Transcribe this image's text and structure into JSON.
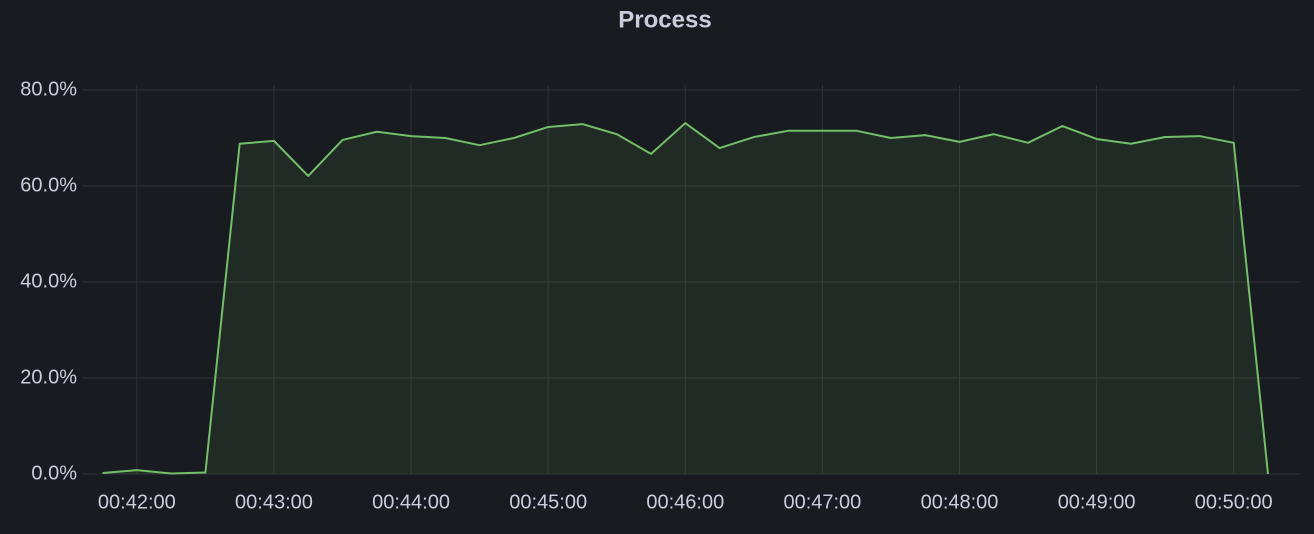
{
  "chart_data": {
    "type": "line",
    "title": "Process",
    "x": [
      "00:41:45",
      "00:42:00",
      "00:42:15",
      "00:42:30",
      "00:42:45",
      "00:43:00",
      "00:43:15",
      "00:43:30",
      "00:43:45",
      "00:44:00",
      "00:44:15",
      "00:44:30",
      "00:44:45",
      "00:45:00",
      "00:45:15",
      "00:45:30",
      "00:45:45",
      "00:46:00",
      "00:46:15",
      "00:46:30",
      "00:46:45",
      "00:47:00",
      "00:47:15",
      "00:47:30",
      "00:47:45",
      "00:48:00",
      "00:48:15",
      "00:48:30",
      "00:48:45",
      "00:49:00",
      "00:49:15",
      "00:49:30",
      "00:49:45",
      "00:50:00",
      "00:50:15"
    ],
    "series": [
      {
        "color": "#73bf69",
        "values": [
          0.2,
          0.8,
          0.1,
          0.3,
          68.8,
          69.4,
          62.1,
          69.6,
          71.3,
          70.4,
          70.0,
          68.5,
          70.0,
          72.3,
          72.9,
          70.8,
          66.7,
          73.1,
          67.9,
          70.2,
          71.5,
          71.5,
          71.5,
          70.0,
          70.6,
          69.2,
          70.8,
          69.0,
          72.5,
          69.8,
          68.8,
          70.2,
          70.4,
          69.0,
          0.0
        ]
      }
    ],
    "xlim": [
      "00:41:36",
      "00:50:29"
    ],
    "xticks": [
      "00:42:00",
      "00:43:00",
      "00:44:00",
      "00:45:00",
      "00:46:00",
      "00:47:00",
      "00:48:00",
      "00:49:00",
      "00:50:00"
    ],
    "ylim": [
      0,
      80
    ],
    "yticks": [
      {
        "value": 0,
        "label": "0.0%"
      },
      {
        "value": 20,
        "label": "20.0%"
      },
      {
        "value": 40,
        "label": "40.0%"
      },
      {
        "value": 60,
        "label": "60.0%"
      },
      {
        "value": 80,
        "label": "80.0%"
      }
    ],
    "grid": true,
    "fill_opacity": 0.1
  }
}
